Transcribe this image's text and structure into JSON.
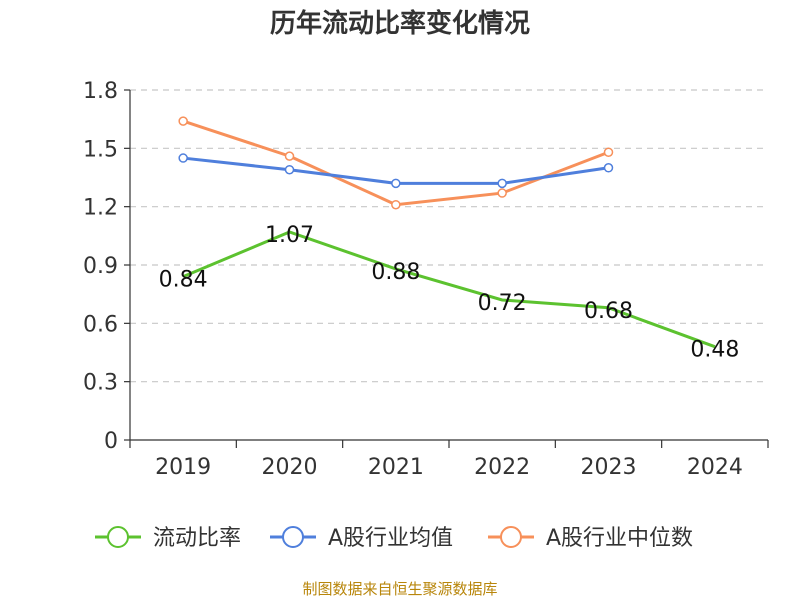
{
  "chart_data": {
    "type": "line",
    "title": "历年流动比率变化情况",
    "source": "制图数据来自恒生聚源数据库",
    "categories": [
      "2019",
      "2020",
      "2021",
      "2022",
      "2023",
      "2024"
    ],
    "ylim": [
      0,
      1.8
    ],
    "yticks": [
      "0",
      "0.3",
      "0.6",
      "0.9",
      "1.2",
      "1.5",
      "1.8"
    ],
    "grid": true,
    "legend_position": "bottom",
    "series": [
      {
        "name": "流动比率",
        "color": "#5cc22f",
        "values": [
          0.84,
          1.07,
          0.88,
          0.72,
          0.68,
          0.48
        ],
        "labels": [
          "0.84",
          "1.07",
          "0.88",
          "0.72",
          "0.68",
          "0.48"
        ]
      },
      {
        "name": "A股行业均值",
        "color": "#4f7fdc",
        "values": [
          1.45,
          1.39,
          1.32,
          1.32,
          1.4,
          null
        ]
      },
      {
        "name": "A股行业中位数",
        "color": "#f7905a",
        "values": [
          1.64,
          1.46,
          1.21,
          1.27,
          1.48,
          null
        ]
      }
    ]
  }
}
